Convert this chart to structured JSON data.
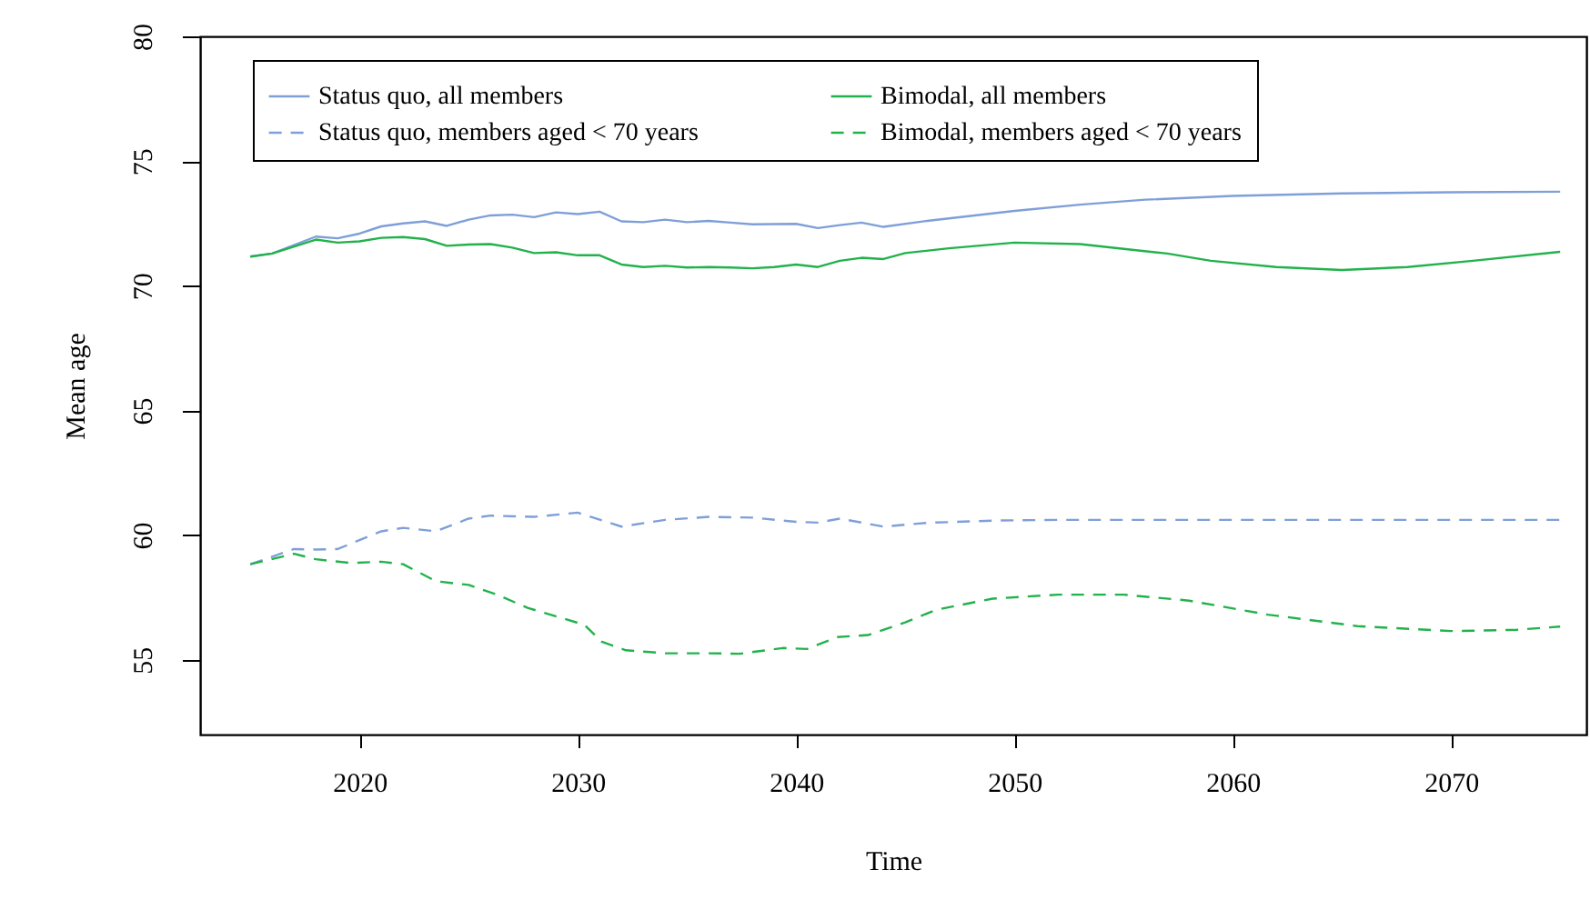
{
  "chart_data": {
    "type": "line",
    "xlabel": "Time",
    "ylabel": "Mean age",
    "xlim": [
      2012.7,
      2076.2
    ],
    "ylim": [
      52,
      80
    ],
    "xticks": [
      2020,
      2030,
      2040,
      2050,
      2060,
      2070
    ],
    "yticks": [
      55,
      60,
      65,
      70,
      75,
      80
    ],
    "grid": false,
    "legend": "top",
    "marker": "none",
    "series": [
      {
        "name": "Status quo, all members",
        "color": "#7f9fd8",
        "line_style": "solid",
        "x": [
          2015,
          2016,
          2018,
          2019,
          2020,
          2021,
          2022,
          2023,
          2024,
          2025,
          2026,
          2027,
          2028,
          2029,
          2030,
          2031,
          2032,
          2033,
          2034,
          2035,
          2036,
          2037,
          2038,
          2040,
          2041,
          2042,
          2043,
          2044,
          2046,
          2048,
          2050,
          2053,
          2056,
          2060,
          2065,
          2070,
          2075
        ],
        "values": [
          71.17,
          71.29,
          71.97,
          71.9,
          72.09,
          72.38,
          72.5,
          72.58,
          72.4,
          72.65,
          72.82,
          72.85,
          72.75,
          72.94,
          72.87,
          72.97,
          72.58,
          72.55,
          72.65,
          72.55,
          72.6,
          72.53,
          72.46,
          72.48,
          72.31,
          72.43,
          72.53,
          72.36,
          72.6,
          72.8,
          73.0,
          73.25,
          73.45,
          73.6,
          73.7,
          73.75,
          73.77
        ]
      },
      {
        "name": "Bimodal, all members",
        "color": "#22b24c",
        "line_style": "solid",
        "x": [
          2015,
          2016,
          2018,
          2019,
          2020,
          2021,
          2022,
          2023,
          2024,
          2025,
          2026,
          2027,
          2028,
          2029,
          2030,
          2031,
          2032,
          2033,
          2034,
          2035,
          2036,
          2037,
          2038,
          2039,
          2040,
          2041,
          2042,
          2043,
          2044,
          2045,
          2047,
          2050,
          2053,
          2057,
          2059,
          2062,
          2065,
          2068,
          2071,
          2075
        ],
        "values": [
          71.17,
          71.29,
          71.85,
          71.73,
          71.78,
          71.92,
          71.95,
          71.87,
          71.6,
          71.65,
          71.67,
          71.53,
          71.31,
          71.34,
          71.22,
          71.22,
          70.85,
          70.75,
          70.8,
          70.73,
          70.75,
          70.73,
          70.7,
          70.75,
          70.85,
          70.75,
          71.0,
          71.12,
          71.07,
          71.31,
          71.5,
          71.73,
          71.67,
          71.29,
          71.0,
          70.75,
          70.63,
          70.75,
          71.0,
          71.36
        ]
      },
      {
        "name": "Status quo, members aged < 70 years",
        "color": "#7f9fd8",
        "line_style": "dashed",
        "x": [
          2015,
          2017,
          2018,
          2019,
          2021,
          2022,
          2023.5,
          2025,
          2026,
          2028,
          2030,
          2032,
          2034,
          2036,
          2038,
          2040,
          2041,
          2042,
          2044,
          2046,
          2049,
          2052,
          2060,
          2070,
          2075
        ],
        "values": [
          58.83,
          59.44,
          59.42,
          59.44,
          60.15,
          60.29,
          60.15,
          60.66,
          60.78,
          60.73,
          60.9,
          60.34,
          60.61,
          60.73,
          60.7,
          60.53,
          60.5,
          60.66,
          60.34,
          60.49,
          60.58,
          60.61,
          60.61,
          60.61,
          60.61
        ]
      },
      {
        "name": "Bimodal, members aged < 70 years",
        "color": "#22b24c",
        "line_style": "dashed",
        "x": [
          2015,
          2017,
          2018,
          2019.6,
          2021,
          2022,
          2023.5,
          2025,
          2026.3,
          2027.7,
          2029.2,
          2030.3,
          2031.1,
          2032.2,
          2034,
          2036,
          2037.4,
          2039.4,
          2040.5,
          2041.9,
          2043.3,
          2045,
          2046.4,
          2049,
          2052,
          2055,
          2058,
          2061.6,
          2065.7,
          2070,
          2073,
          2075
        ],
        "values": [
          58.83,
          59.25,
          59.03,
          58.88,
          58.93,
          58.83,
          58.15,
          58.0,
          57.61,
          57.08,
          56.69,
          56.4,
          55.72,
          55.38,
          55.26,
          55.26,
          55.24,
          55.47,
          55.43,
          55.91,
          55.99,
          56.5,
          57.0,
          57.45,
          57.61,
          57.61,
          57.37,
          56.81,
          56.35,
          56.15,
          56.2,
          56.33
        ]
      }
    ]
  }
}
